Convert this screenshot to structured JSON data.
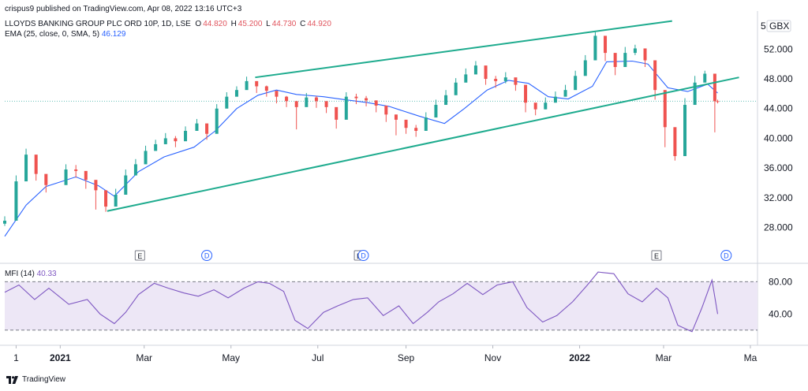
{
  "header": {
    "publisher": "crispus9 published on TradingView.com, Apr 08, 2022 13:16 UTC+3",
    "symbol": "LLOYDS BANKING GROUP PLC ORD 10P, 1D, LSE",
    "ohlc": [
      {
        "label": "O",
        "value": "44.820"
      },
      {
        "label": "H",
        "value": "45.200"
      },
      {
        "label": "L",
        "value": "44.730"
      },
      {
        "label": "C",
        "value": "44.920"
      }
    ],
    "ema_label": "EMA (25, close, 0, SMA, 5)",
    "ema_value": "46.129",
    "currency": "GBX"
  },
  "mfi_legend": {
    "label": "MFI (14)",
    "value": "40.33"
  },
  "footer": {
    "brand": "TradingView"
  },
  "colors": {
    "up": "#26a69a",
    "down": "#ef5350",
    "ema": "#2962ff",
    "trendline": "#1eab8e",
    "mfi_line": "#7e57c2",
    "mfi_band": "#ede7f6",
    "price_line": "#26a69a"
  },
  "chart_data": [
    {
      "type": "candlestick",
      "title": "LLOYDS BANKING GROUP PLC ORD 10P, 1D, LSE",
      "ylabel": "GBX",
      "y_ticks": [
        "52.000",
        "48.000",
        "44.000",
        "40.000",
        "36.000",
        "32.000",
        "28.000"
      ],
      "y_top_partial": "5",
      "ylim": [
        25.5,
        56.5
      ],
      "x_ticks": [
        "1",
        "2021",
        "Mar",
        "May",
        "Jul",
        "Sep",
        "Nov",
        "2022",
        "Mar",
        "Ma"
      ],
      "x_bold_ticks": [
        "2021",
        "2022"
      ],
      "x_tick_dates": [
        "2020-12-01",
        "2021-01-01",
        "2021-03-01",
        "2021-05-01",
        "2021-07-01",
        "2021-09-01",
        "2021-11-01",
        "2022-01-01",
        "2022-03-01",
        "2022-05-01"
      ],
      "xlim": [
        "2020-11-23",
        "2022-05-06"
      ],
      "ema_series": {
        "name": "EMA (25, close, 0, SMA, 5)",
        "dates": [
          "2020-11-23",
          "2020-12-08",
          "2020-12-22",
          "2021-01-12",
          "2021-01-28",
          "2021-02-08",
          "2021-02-25",
          "2021-03-15",
          "2021-04-05",
          "2021-04-20",
          "2021-05-05",
          "2021-05-20",
          "2021-06-02",
          "2021-06-16",
          "2021-07-05",
          "2021-07-20",
          "2021-08-05",
          "2021-08-20",
          "2021-09-10",
          "2021-09-28",
          "2021-10-12",
          "2021-10-28",
          "2021-11-12",
          "2021-11-26",
          "2021-12-10",
          "2021-12-24",
          "2022-01-10",
          "2022-01-20",
          "2022-02-07",
          "2022-02-18",
          "2022-03-04",
          "2022-03-18",
          "2022-04-01",
          "2022-04-08"
        ],
        "values": [
          26.8,
          31.0,
          33.5,
          34.8,
          33.6,
          32.2,
          35.5,
          37.5,
          38.8,
          41.0,
          44.0,
          45.8,
          46.5,
          45.9,
          45.6,
          45.2,
          44.8,
          44.3,
          43.0,
          42.0,
          44.0,
          46.5,
          47.8,
          47.4,
          45.6,
          45.3,
          47.0,
          50.3,
          50.4,
          50.0,
          46.8,
          46.3,
          47.3,
          46.1
        ]
      },
      "candles": {
        "dates": [
          "2020-11-23",
          "2020-12-01",
          "2020-12-08",
          "2020-12-15",
          "2020-12-22",
          "2021-01-05",
          "2021-01-12",
          "2021-01-19",
          "2021-01-26",
          "2021-02-02",
          "2021-02-09",
          "2021-02-16",
          "2021-02-23",
          "2021-03-02",
          "2021-03-09",
          "2021-03-16",
          "2021-03-23",
          "2021-03-30",
          "2021-04-07",
          "2021-04-14",
          "2021-04-21",
          "2021-04-28",
          "2021-05-05",
          "2021-05-12",
          "2021-05-19",
          "2021-05-26",
          "2021-06-02",
          "2021-06-09",
          "2021-06-16",
          "2021-06-23",
          "2021-06-30",
          "2021-07-07",
          "2021-07-14",
          "2021-07-21",
          "2021-07-28",
          "2021-08-04",
          "2021-08-11",
          "2021-08-18",
          "2021-08-25",
          "2021-09-01",
          "2021-09-08",
          "2021-09-15",
          "2021-09-22",
          "2021-09-29",
          "2021-10-06",
          "2021-10-13",
          "2021-10-20",
          "2021-10-27",
          "2021-11-03",
          "2021-11-10",
          "2021-11-17",
          "2021-11-24",
          "2021-12-01",
          "2021-12-08",
          "2021-12-15",
          "2021-12-22",
          "2021-12-29",
          "2022-01-05",
          "2022-01-12",
          "2022-01-19",
          "2022-01-26",
          "2022-02-02",
          "2022-02-09",
          "2022-02-16",
          "2022-02-23",
          "2022-03-02",
          "2022-03-09",
          "2022-03-16",
          "2022-03-23",
          "2022-03-30",
          "2022-04-06",
          "2022-04-08"
        ],
        "close": [
          28.9,
          34.2,
          37.8,
          35.2,
          33.7,
          35.8,
          35.6,
          34.4,
          33.0,
          30.8,
          32.4,
          35.0,
          36.5,
          38.3,
          39.2,
          40.0,
          39.6,
          41.0,
          42.0,
          40.6,
          44.0,
          45.6,
          46.5,
          47.7,
          47.0,
          46.4,
          45.6,
          45.0,
          44.2,
          45.5,
          45.0,
          44.2,
          42.5,
          45.6,
          45.4,
          45.1,
          44.4,
          43.2,
          42.5,
          41.4,
          41.0,
          42.8,
          44.5,
          45.8,
          47.5,
          48.6,
          49.8,
          48.0,
          47.7,
          48.2,
          47.2,
          44.8,
          43.9,
          44.8,
          45.6,
          46.5,
          48.4,
          50.5,
          53.8,
          51.5,
          49.6,
          51.5,
          52.1,
          50.5,
          46.5,
          41.5,
          37.6,
          44.5,
          47.5,
          48.7,
          45.0,
          44.9
        ],
        "high": [
          29.5,
          35.0,
          38.6,
          36.2,
          34.5,
          36.5,
          36.4,
          35.3,
          34.0,
          31.8,
          33.2,
          35.8,
          37.2,
          39.0,
          39.8,
          40.7,
          40.3,
          41.6,
          42.6,
          41.6,
          44.6,
          46.2,
          47.0,
          48.3,
          47.7,
          47.1,
          46.3,
          45.7,
          45.0,
          46.1,
          45.7,
          44.9,
          43.5,
          46.2,
          46.0,
          45.7,
          45.1,
          44.0,
          43.2,
          42.3,
          41.8,
          43.5,
          45.2,
          46.5,
          48.1,
          49.4,
          50.4,
          48.9,
          48.4,
          48.9,
          47.9,
          45.6,
          44.7,
          45.5,
          46.3,
          47.2,
          49.1,
          51.2,
          54.3,
          52.4,
          50.5,
          52.3,
          52.6,
          51.4,
          47.6,
          43.0,
          39.5,
          45.4,
          48.4,
          49.1,
          46.4,
          45.2
        ],
        "low": [
          28.2,
          33.2,
          36.8,
          34.3,
          32.7,
          34.9,
          34.7,
          33.2,
          30.4,
          30.1,
          31.6,
          34.1,
          35.8,
          37.5,
          38.4,
          39.2,
          38.8,
          40.1,
          41.1,
          39.8,
          43.1,
          44.9,
          45.7,
          46.9,
          46.1,
          45.6,
          44.7,
          44.2,
          41.2,
          44.7,
          44.1,
          43.4,
          41.3,
          44.8,
          44.6,
          44.3,
          43.5,
          42.2,
          40.4,
          40.6,
          40.2,
          41.9,
          43.8,
          45.0,
          46.6,
          47.8,
          49.0,
          47.2,
          46.8,
          47.4,
          46.4,
          43.5,
          43.1,
          43.9,
          44.8,
          45.7,
          47.6,
          49.7,
          52.9,
          50.4,
          48.5,
          50.5,
          51.2,
          49.6,
          45.2,
          38.8,
          37.0,
          43.2,
          46.6,
          47.8,
          40.8,
          44.7
        ]
      },
      "price_line": 45.0,
      "trendlines": [
        {
          "name": "upper",
          "from": {
            "date": "2021-05-18",
            "value": 48.2
          },
          "to": {
            "date": "2022-03-07",
            "value": 55.8
          }
        },
        {
          "name": "lower",
          "from": {
            "date": "2021-02-03",
            "value": 30.2
          },
          "to": {
            "date": "2022-04-23",
            "value": 48.2
          }
        }
      ],
      "events": [
        {
          "label": "E",
          "date": "2021-02-26"
        },
        {
          "label": "D",
          "date": "2021-04-14"
        },
        {
          "label": "E",
          "date": "2021-07-30"
        },
        {
          "label": "D",
          "date": "2021-08-02"
        },
        {
          "label": "E",
          "date": "2022-02-24"
        },
        {
          "label": "D",
          "date": "2022-04-14"
        }
      ]
    },
    {
      "type": "line",
      "title": "MFI (14)",
      "y_ticks": [
        "80.00",
        "40.00"
      ],
      "ylim": [
        7,
        97
      ],
      "band": [
        80,
        20
      ],
      "series": [
        {
          "name": "MFI (14)",
          "dates": [
            "2020-11-23",
            "2020-12-03",
            "2020-12-14",
            "2020-12-24",
            "2021-01-07",
            "2021-01-20",
            "2021-01-29",
            "2021-02-08",
            "2021-02-16",
            "2021-02-25",
            "2021-03-08",
            "2021-03-18",
            "2021-03-29",
            "2021-04-08",
            "2021-04-19",
            "2021-04-29",
            "2021-05-10",
            "2021-05-20",
            "2021-05-28",
            "2021-06-07",
            "2021-06-15",
            "2021-06-24",
            "2021-07-05",
            "2021-07-15",
            "2021-07-26",
            "2021-08-05",
            "2021-08-16",
            "2021-08-27",
            "2021-09-06",
            "2021-09-16",
            "2021-09-24",
            "2021-10-04",
            "2021-10-14",
            "2021-10-25",
            "2021-11-04",
            "2021-11-15",
            "2021-11-25",
            "2021-12-06",
            "2021-12-16",
            "2021-12-27",
            "2022-01-06",
            "2022-01-14",
            "2022-01-25",
            "2022-02-04",
            "2022-02-14",
            "2022-02-24",
            "2022-03-04",
            "2022-03-11",
            "2022-03-21",
            "2022-03-28",
            "2022-04-04",
            "2022-04-08"
          ],
          "values": [
            67,
            76,
            58,
            72,
            52,
            58,
            40,
            28,
            42,
            64,
            78,
            72,
            66,
            62,
            70,
            60,
            72,
            80,
            78,
            68,
            32,
            22,
            42,
            50,
            58,
            60,
            38,
            50,
            28,
            42,
            55,
            65,
            78,
            64,
            76,
            80,
            48,
            30,
            38,
            55,
            75,
            92,
            90,
            65,
            55,
            72,
            60,
            26,
            18,
            48,
            82,
            40
          ]
        }
      ]
    }
  ]
}
